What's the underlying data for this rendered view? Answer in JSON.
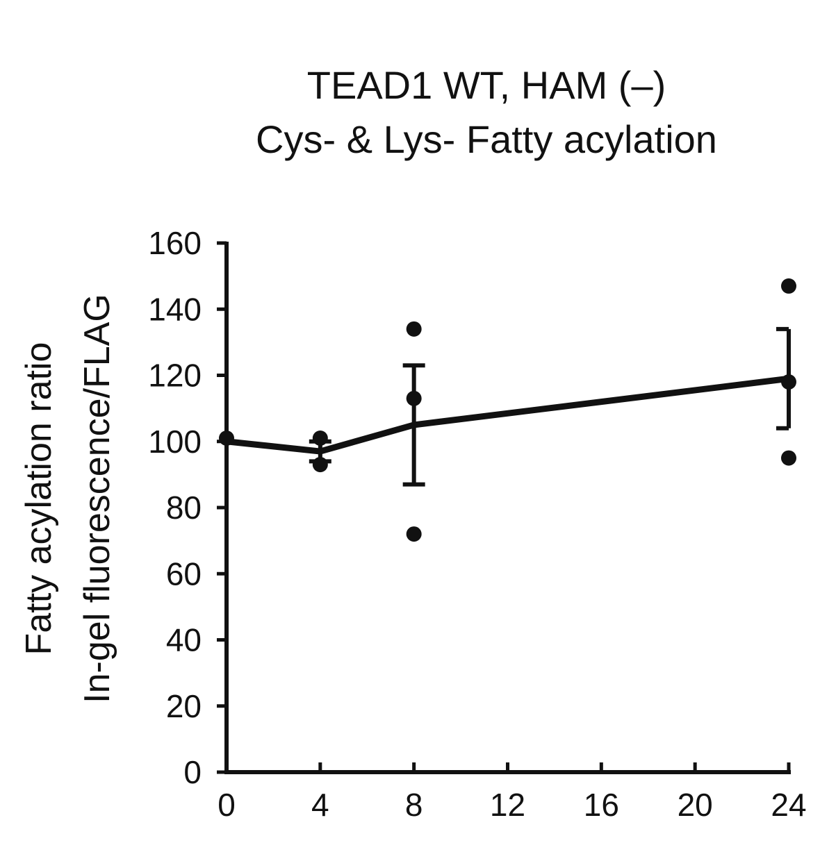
{
  "chart_data": {
    "type": "line",
    "title_lines": [
      "TEAD1 WT, HAM (–)",
      "Cys- & Lys- Fatty acylation"
    ],
    "ylabel_lines": [
      "Fatty acylation ratio",
      "In-gel fluorescence/FLAG"
    ],
    "xlabel": "",
    "xlim": [
      0,
      24
    ],
    "ylim": [
      0,
      160
    ],
    "xticks": [
      0,
      4,
      8,
      12,
      16,
      20,
      24
    ],
    "yticks": [
      0,
      20,
      40,
      60,
      80,
      100,
      120,
      140,
      160
    ],
    "grid": false,
    "color": "#111111",
    "mean_series": {
      "x": [
        0,
        4,
        8,
        24
      ],
      "y": [
        100,
        97,
        105,
        119
      ]
    },
    "error_bars": [
      {
        "x": 4,
        "low": 94,
        "high": 100
      },
      {
        "x": 8,
        "low": 87,
        "high": 123
      },
      {
        "x": 24,
        "low": 104,
        "high": 134
      }
    ],
    "points": [
      {
        "x": 0,
        "y": 101
      },
      {
        "x": 4,
        "y": 101
      },
      {
        "x": 4,
        "y": 93
      },
      {
        "x": 8,
        "y": 134
      },
      {
        "x": 8,
        "y": 113
      },
      {
        "x": 8,
        "y": 72
      },
      {
        "x": 24,
        "y": 147
      },
      {
        "x": 24,
        "y": 118
      },
      {
        "x": 24,
        "y": 95
      }
    ]
  }
}
